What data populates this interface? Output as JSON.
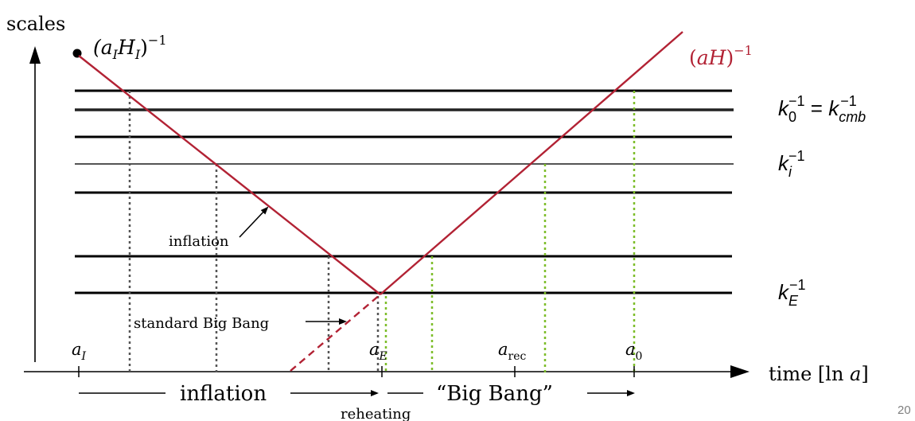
{
  "axes": {
    "y_label": "scales",
    "x_label": "time [ln a]"
  },
  "curve": {
    "start_label": "(a_I H_I)^-1",
    "end_label": "(aH)^-1",
    "start_label_parts": {
      "open": "(a",
      "sub1": "I",
      "mid": "H",
      "sub2": "I",
      "close": ")",
      "sup": "−1"
    },
    "end_label_parts": {
      "text": "(aH)",
      "sup": "−1"
    }
  },
  "annotations": {
    "inflation_arrow_label": "inflation",
    "standard_big_bang_label": "standard Big Bang"
  },
  "x_ticks": [
    {
      "base": "a",
      "sub": "I"
    },
    {
      "base": "a",
      "sub": "E"
    },
    {
      "base": "a",
      "sub": "rec"
    },
    {
      "base": "a",
      "sub": "0"
    }
  ],
  "scale_labels": {
    "k0": {
      "base": "k",
      "sub": "0",
      "sup": "−1",
      "eq": "=",
      "base2": "k",
      "sub2": "cmb",
      "sup2": "−1"
    },
    "ki": {
      "base": "k",
      "sub": "i",
      "sup": "−1"
    },
    "kE": {
      "base": "k",
      "sub": "E",
      "sup": "−1"
    }
  },
  "phases": {
    "inflation": "inflation",
    "big_bang": "“Big Bang”",
    "reheating": "reheating"
  },
  "slide_number": "20",
  "colors": {
    "curve": "#b22234",
    "grid_line": "#000000",
    "inflation_drop": "#555555",
    "bigbang_drop": "#7cbd28"
  }
}
